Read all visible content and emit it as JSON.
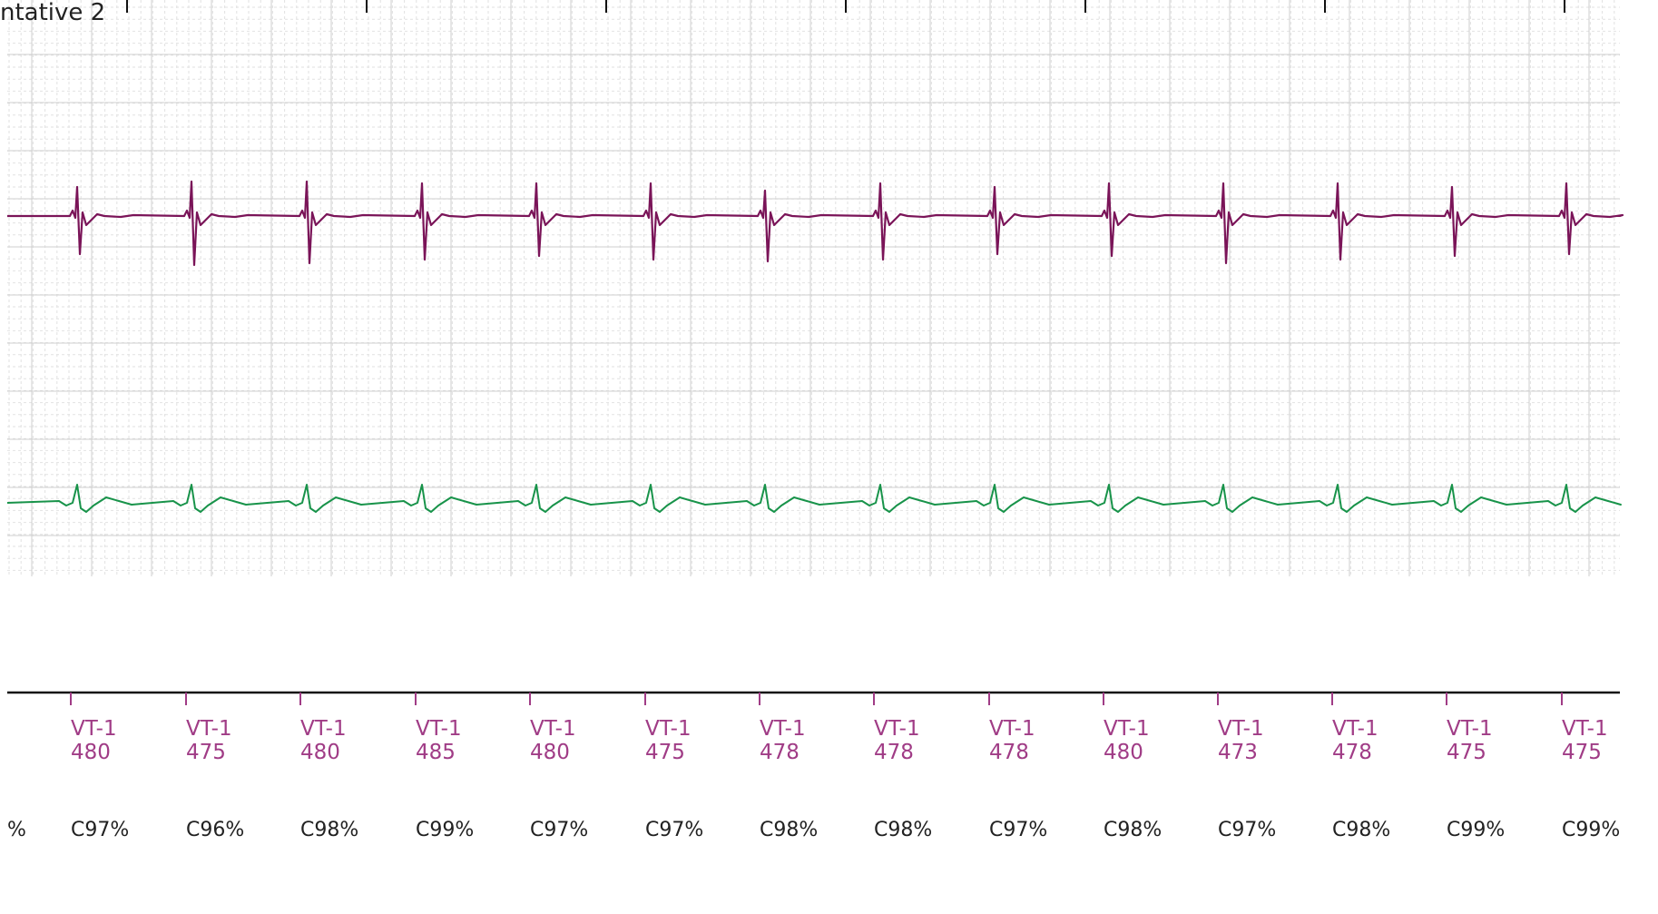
{
  "strip": {
    "title": "ntative 2",
    "channels": [
      {
        "name": "",
        "color": "#7a1458"
      },
      {
        "name": "",
        "color": "#18934a"
      }
    ]
  },
  "colors": {
    "grid_minor": "#e2e2e2",
    "grid_major": "#cfcfcf",
    "marker": "#a03c86",
    "axis": "#111111",
    "text": "#222222"
  },
  "beats": [
    {
      "marker": "VT-1",
      "interval": "480",
      "confidence": "C97%"
    },
    {
      "marker": "VT-1",
      "interval": "475",
      "confidence": "C96%"
    },
    {
      "marker": "VT-1",
      "interval": "480",
      "confidence": "C98%"
    },
    {
      "marker": "VT-1",
      "interval": "485",
      "confidence": "C99%"
    },
    {
      "marker": "VT-1",
      "interval": "480",
      "confidence": "C97%"
    },
    {
      "marker": "VT-1",
      "interval": "475",
      "confidence": "C97%"
    },
    {
      "marker": "VT-1",
      "interval": "478",
      "confidence": "C98%"
    },
    {
      "marker": "VT-1",
      "interval": "478",
      "confidence": "C98%"
    },
    {
      "marker": "VT-1",
      "interval": "478",
      "confidence": "C97%"
    },
    {
      "marker": "VT-1",
      "interval": "480",
      "confidence": "C98%"
    },
    {
      "marker": "VT-1",
      "interval": "473",
      "confidence": "C97%"
    },
    {
      "marker": "VT-1",
      "interval": "478",
      "confidence": "C98%"
    },
    {
      "marker": "VT-1",
      "interval": "475",
      "confidence": "C99%"
    },
    {
      "marker": "VT-1",
      "interval": "475",
      "confidence": "C99%"
    }
  ],
  "partial_left_label": "%"
}
